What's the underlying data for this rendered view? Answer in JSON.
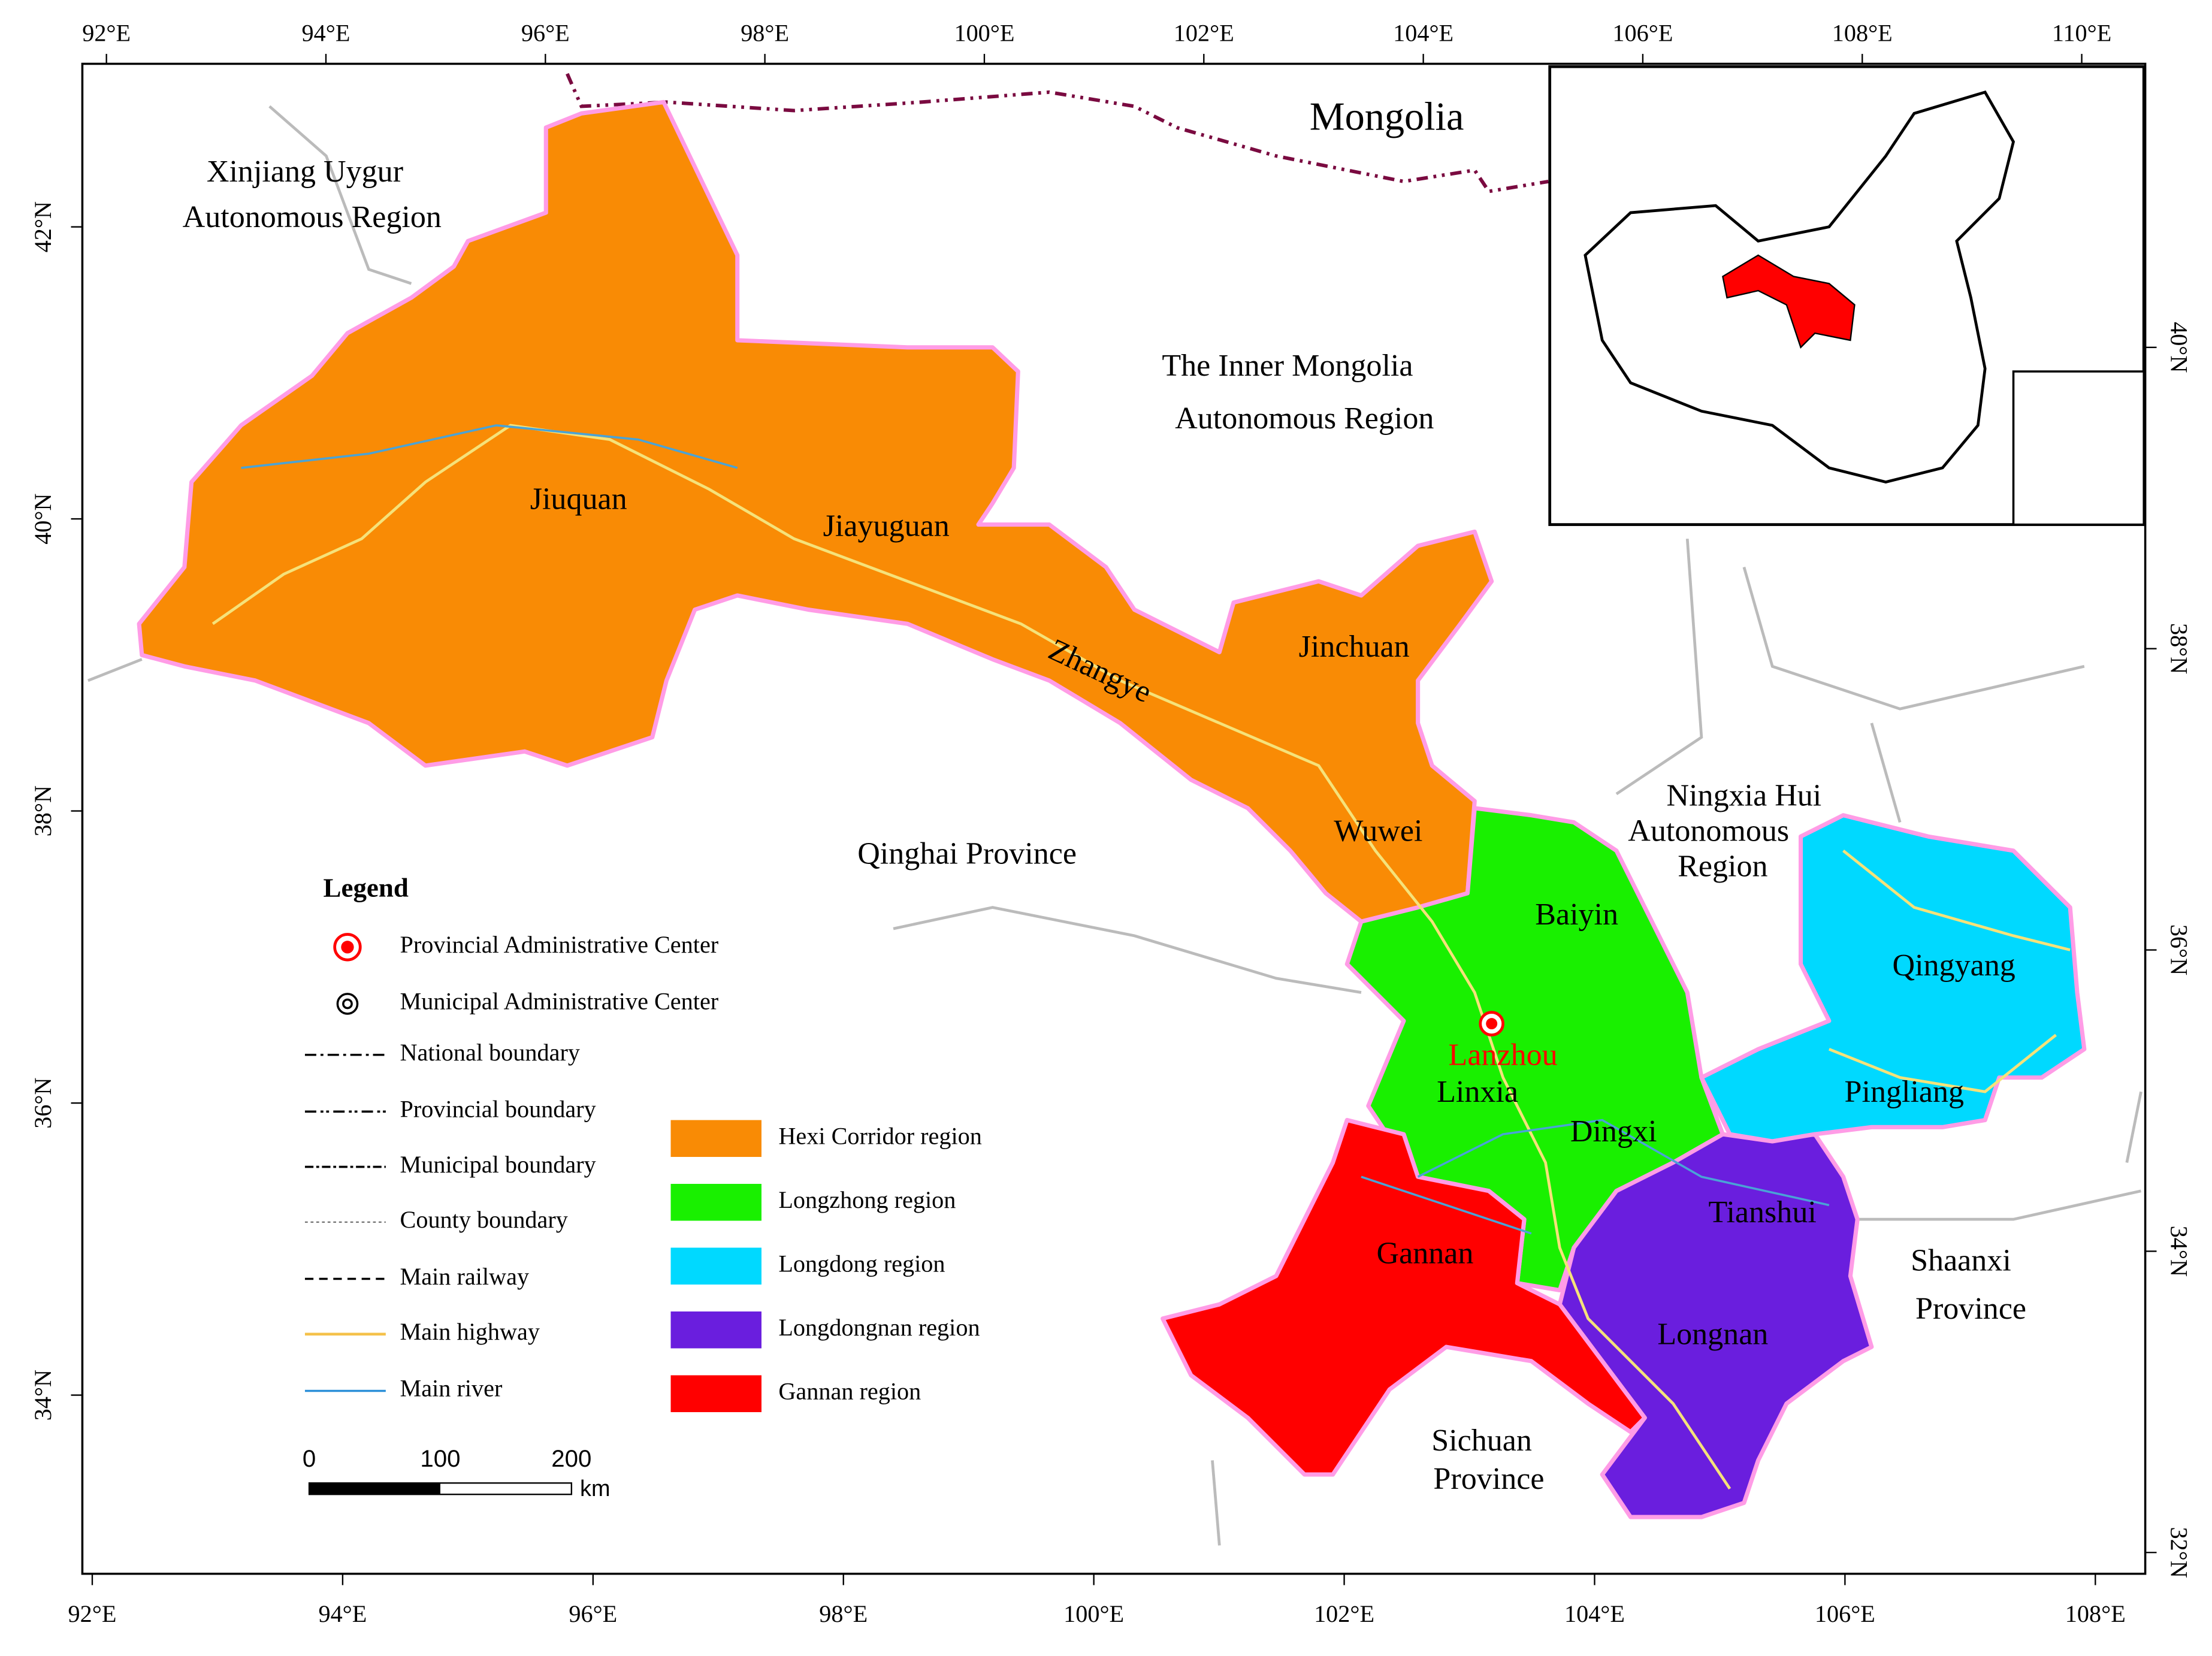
{
  "axes": {
    "top": [
      "92°E",
      "94°E",
      "96°E",
      "98°E",
      "100°E",
      "102°E",
      "104°E",
      "106°E",
      "108°E",
      "110°E"
    ],
    "bottom": [
      "92°E",
      "94°E",
      "96°E",
      "98°E",
      "100°E",
      "102°E",
      "104°E",
      "106°E",
      "108°E"
    ],
    "left": [
      "42°N",
      "40°N",
      "38°N",
      "36°N",
      "34°N"
    ],
    "right": [
      "40°N",
      "38°N",
      "36°N",
      "34°N",
      "32°N"
    ]
  },
  "labels": [
    "Mongolia",
    "Xinjiang  Uygur",
    "Autonomous Region",
    "The Inner Mongolia",
    "Autonomous Region",
    "Jiuquan",
    "Jiayuguan",
    "Zhangye",
    "Jinchuan",
    "Wuwei",
    "Qinghai Province",
    "Ningxia Hui",
    "Autonomous",
    "Region",
    "Baiyin",
    "Qingyang",
    "Lanzhou",
    "Linxia",
    "Pingliang",
    "Dingxi",
    "Tianshui",
    "Gannan",
    "Shaanxi",
    "Province",
    "Longnan",
    "Sichuan",
    "Province"
  ],
  "legend": {
    "title": "Legend",
    "symbols": [
      "Provincial Administrative Center",
      "Municipal Administrative Center",
      "National boundary",
      "Provincial boundary",
      "Municipal boundary",
      "County boundary",
      "Main  railway",
      "Main highway",
      "Main river"
    ],
    "regions": [
      {
        "label": "Hexi Corridor region",
        "color": "#f98b05"
      },
      {
        "label": "Longzhong region",
        "color": "#19f000"
      },
      {
        "label": "Longdong region",
        "color": "#00d9ff"
      },
      {
        "label": "Longdongnan region",
        "color": "#6a1ede"
      },
      {
        "label": "Gannan region",
        "color": "#ff0000"
      }
    ]
  },
  "scale_bar": {
    "ticks": [
      0,
      100,
      200
    ],
    "unit": "km"
  }
}
